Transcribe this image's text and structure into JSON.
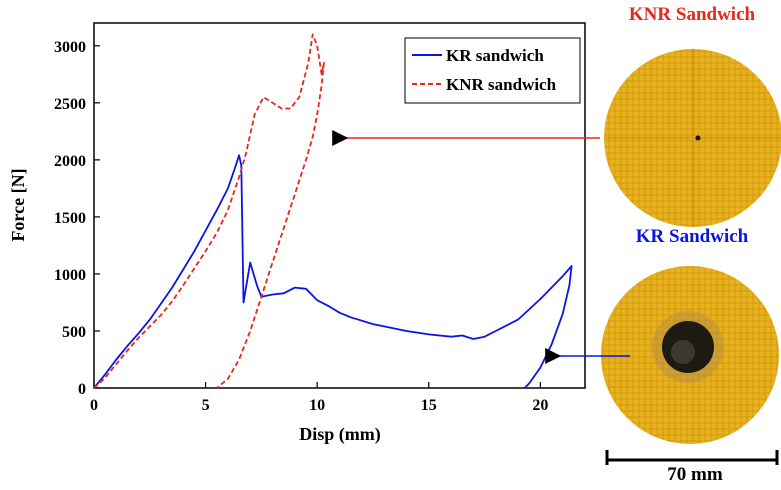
{
  "chart_data": {
    "type": "line",
    "title": "",
    "xlabel": "Disp (mm)",
    "ylabel": "Force [N]",
    "xlim": [
      0,
      22
    ],
    "ylim": [
      0,
      3200
    ],
    "xticks": [
      0,
      5,
      10,
      15,
      20
    ],
    "yticks": [
      0,
      500,
      1000,
      1500,
      2000,
      2500,
      3000
    ],
    "grid": false,
    "legend_position": "top-right",
    "series": [
      {
        "name": "KR sandwich",
        "color": "#0a14e6",
        "style": "solid",
        "x": [
          0,
          0.5,
          1,
          1.5,
          2,
          2.5,
          3,
          3.5,
          4,
          4.5,
          5,
          5.5,
          6,
          6.3,
          6.5,
          6.6,
          6.7,
          7.0,
          7.3,
          7.5,
          8,
          8.5,
          9,
          9.5,
          10,
          10.5,
          11,
          11.5,
          12,
          12.5,
          13,
          14,
          15,
          16,
          16.5,
          17,
          17.5,
          18,
          19,
          20,
          20.5,
          21,
          21.4,
          21.3,
          21,
          20.5,
          20,
          19.5,
          19.3
        ],
        "y": [
          0,
          120,
          250,
          370,
          480,
          600,
          740,
          880,
          1040,
          1200,
          1380,
          1560,
          1750,
          1920,
          2040,
          1950,
          750,
          1100,
          900,
          800,
          820,
          830,
          880,
          870,
          770,
          720,
          660,
          620,
          590,
          560,
          540,
          500,
          470,
          450,
          460,
          430,
          450,
          500,
          600,
          780,
          880,
          980,
          1070,
          900,
          650,
          380,
          180,
          40,
          0
        ]
      },
      {
        "name": "KNR sandwich",
        "color": "#e8261a",
        "style": "dashed",
        "x": [
          0,
          0.5,
          1,
          1.5,
          2,
          2.5,
          3,
          3.5,
          4,
          4.5,
          5,
          5.5,
          6,
          6.5,
          6.8,
          7.2,
          7.6,
          8,
          8.4,
          8.8,
          9.2,
          9.6,
          9.8,
          10,
          10.2,
          10.3,
          10.2,
          10,
          9.8,
          9.5,
          9,
          8.5,
          8,
          7.5,
          7,
          6.5,
          6,
          5.5
        ],
        "y": [
          0,
          90,
          210,
          330,
          440,
          540,
          640,
          760,
          900,
          1050,
          1200,
          1360,
          1560,
          1850,
          2050,
          2400,
          2550,
          2500,
          2450,
          2450,
          2550,
          2850,
          3100,
          3000,
          2750,
          2850,
          2650,
          2400,
          2200,
          2000,
          1700,
          1400,
          1100,
          800,
          500,
          250,
          80,
          0
        ]
      }
    ],
    "annotations": [
      {
        "text": "KNR Sandwich",
        "color": "#e8261a"
      },
      {
        "text": "KR Sandwich",
        "color": "#0a14e6"
      }
    ]
  },
  "photos": {
    "knr_title": "KNR Sandwich",
    "kr_title": "KR Sandwich",
    "scale_bar_label": "70 mm"
  }
}
